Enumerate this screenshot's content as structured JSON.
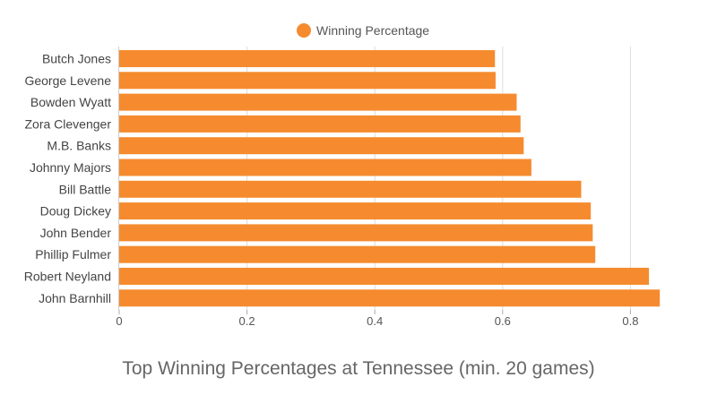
{
  "chart_data": {
    "type": "bar",
    "orientation": "horizontal",
    "title": "Top Winning Percentages at Tennessee (min. 20 games)",
    "xlabel": "",
    "ylabel": "",
    "categories": [
      "Butch Jones",
      "George Levene",
      "Bowden Wyatt",
      "Zora Clevenger",
      "M.B. Banks",
      "Johnny Majors",
      "Bill Battle",
      "Doug Dickey",
      "John Bender",
      "Phillip Fulmer",
      "Robert Neyland",
      "John Barnhill"
    ],
    "series": [
      {
        "name": "Winning Percentage",
        "color": "#f58b2e",
        "values": [
          0.588,
          0.589,
          0.622,
          0.628,
          0.633,
          0.645,
          0.723,
          0.738,
          0.741,
          0.745,
          0.829,
          0.846
        ]
      }
    ],
    "xlim": [
      0,
      0.85
    ],
    "x_ticks": [
      "0",
      "0.2",
      "0.4",
      "0.6",
      "0.8"
    ],
    "x_tick_values": [
      0,
      0.2,
      0.4,
      0.6,
      0.8
    ],
    "grid": true,
    "legend_position": "top-center"
  }
}
